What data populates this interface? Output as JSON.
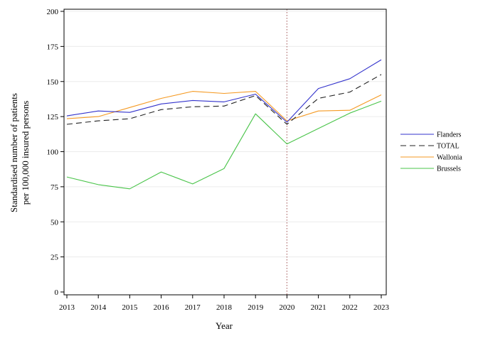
{
  "chart_data": {
    "type": "line",
    "title": "",
    "xlabel": "Year",
    "ylabel_line1": "Standardised number of patients",
    "ylabel_line2": "per 100,000 insured persons",
    "xlim": [
      2013,
      2023
    ],
    "ylim": [
      0,
      200
    ],
    "x_ticks": [
      2013,
      2014,
      2015,
      2016,
      2017,
      2018,
      2019,
      2020,
      2021,
      2022,
      2023
    ],
    "y_ticks": [
      0,
      25,
      50,
      75,
      100,
      125,
      150,
      175,
      200
    ],
    "grid": "horizontal, light",
    "reference_line": {
      "x": 2020,
      "style": "dotted",
      "color": "#b07070"
    },
    "legend_position": "right",
    "x": [
      2013,
      2014,
      2015,
      2016,
      2017,
      2018,
      2019,
      2020,
      2021,
      2022,
      2023
    ],
    "series": [
      {
        "name": "Flanders",
        "color": "#3333cc",
        "dash": "solid",
        "values": [
          125.5,
          129,
          128,
          134,
          136.5,
          135.5,
          141,
          121,
          145,
          152,
          165.5
        ]
      },
      {
        "name": "TOTAL",
        "color": "#222222",
        "dash": "dashed",
        "values": [
          119.5,
          122,
          123.5,
          130,
          132,
          132.5,
          140,
          119.5,
          138,
          142.5,
          155
        ]
      },
      {
        "name": "Wallonia",
        "color": "#f59a23",
        "dash": "solid",
        "values": [
          123.5,
          125,
          131.5,
          138,
          143,
          141.5,
          143,
          122,
          129,
          129.5,
          140.5
        ]
      },
      {
        "name": "Brussels",
        "color": "#49c449",
        "dash": "solid",
        "values": [
          82,
          76.5,
          73.5,
          85.5,
          77,
          88,
          127,
          105.5,
          116.5,
          127.5,
          136
        ]
      }
    ]
  }
}
